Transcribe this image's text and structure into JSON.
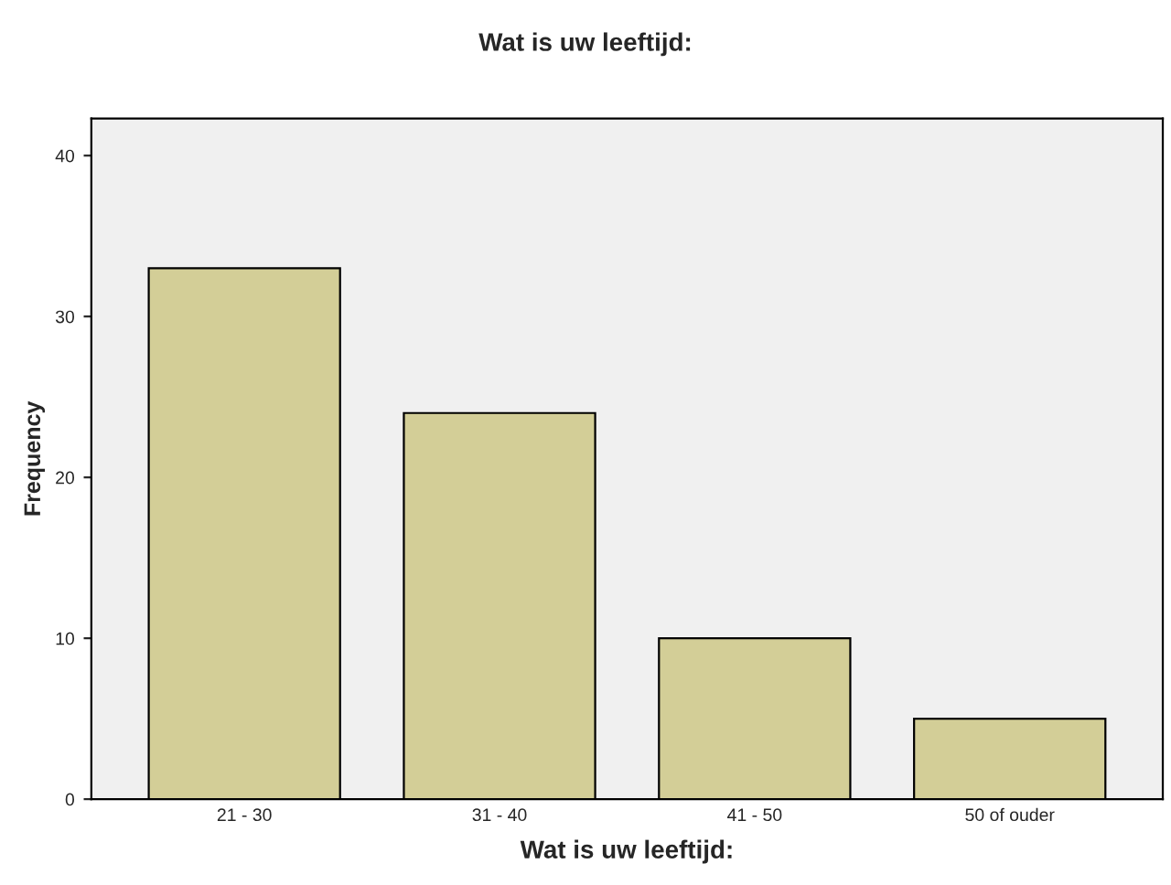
{
  "chart_data": {
    "type": "bar",
    "title": "Wat is uw leeftijd:",
    "xlabel": "Wat is uw leeftijd:",
    "ylabel": "Frequency",
    "categories": [
      "21 - 30",
      "31 - 40",
      "41 - 50",
      "50 of ouder"
    ],
    "values": [
      33,
      24,
      10,
      5
    ],
    "color": "#d3ce97",
    "ylim": [
      0,
      42.3
    ],
    "yticks": [
      0,
      10,
      20,
      30,
      40
    ],
    "grid": false,
    "legend": false
  }
}
